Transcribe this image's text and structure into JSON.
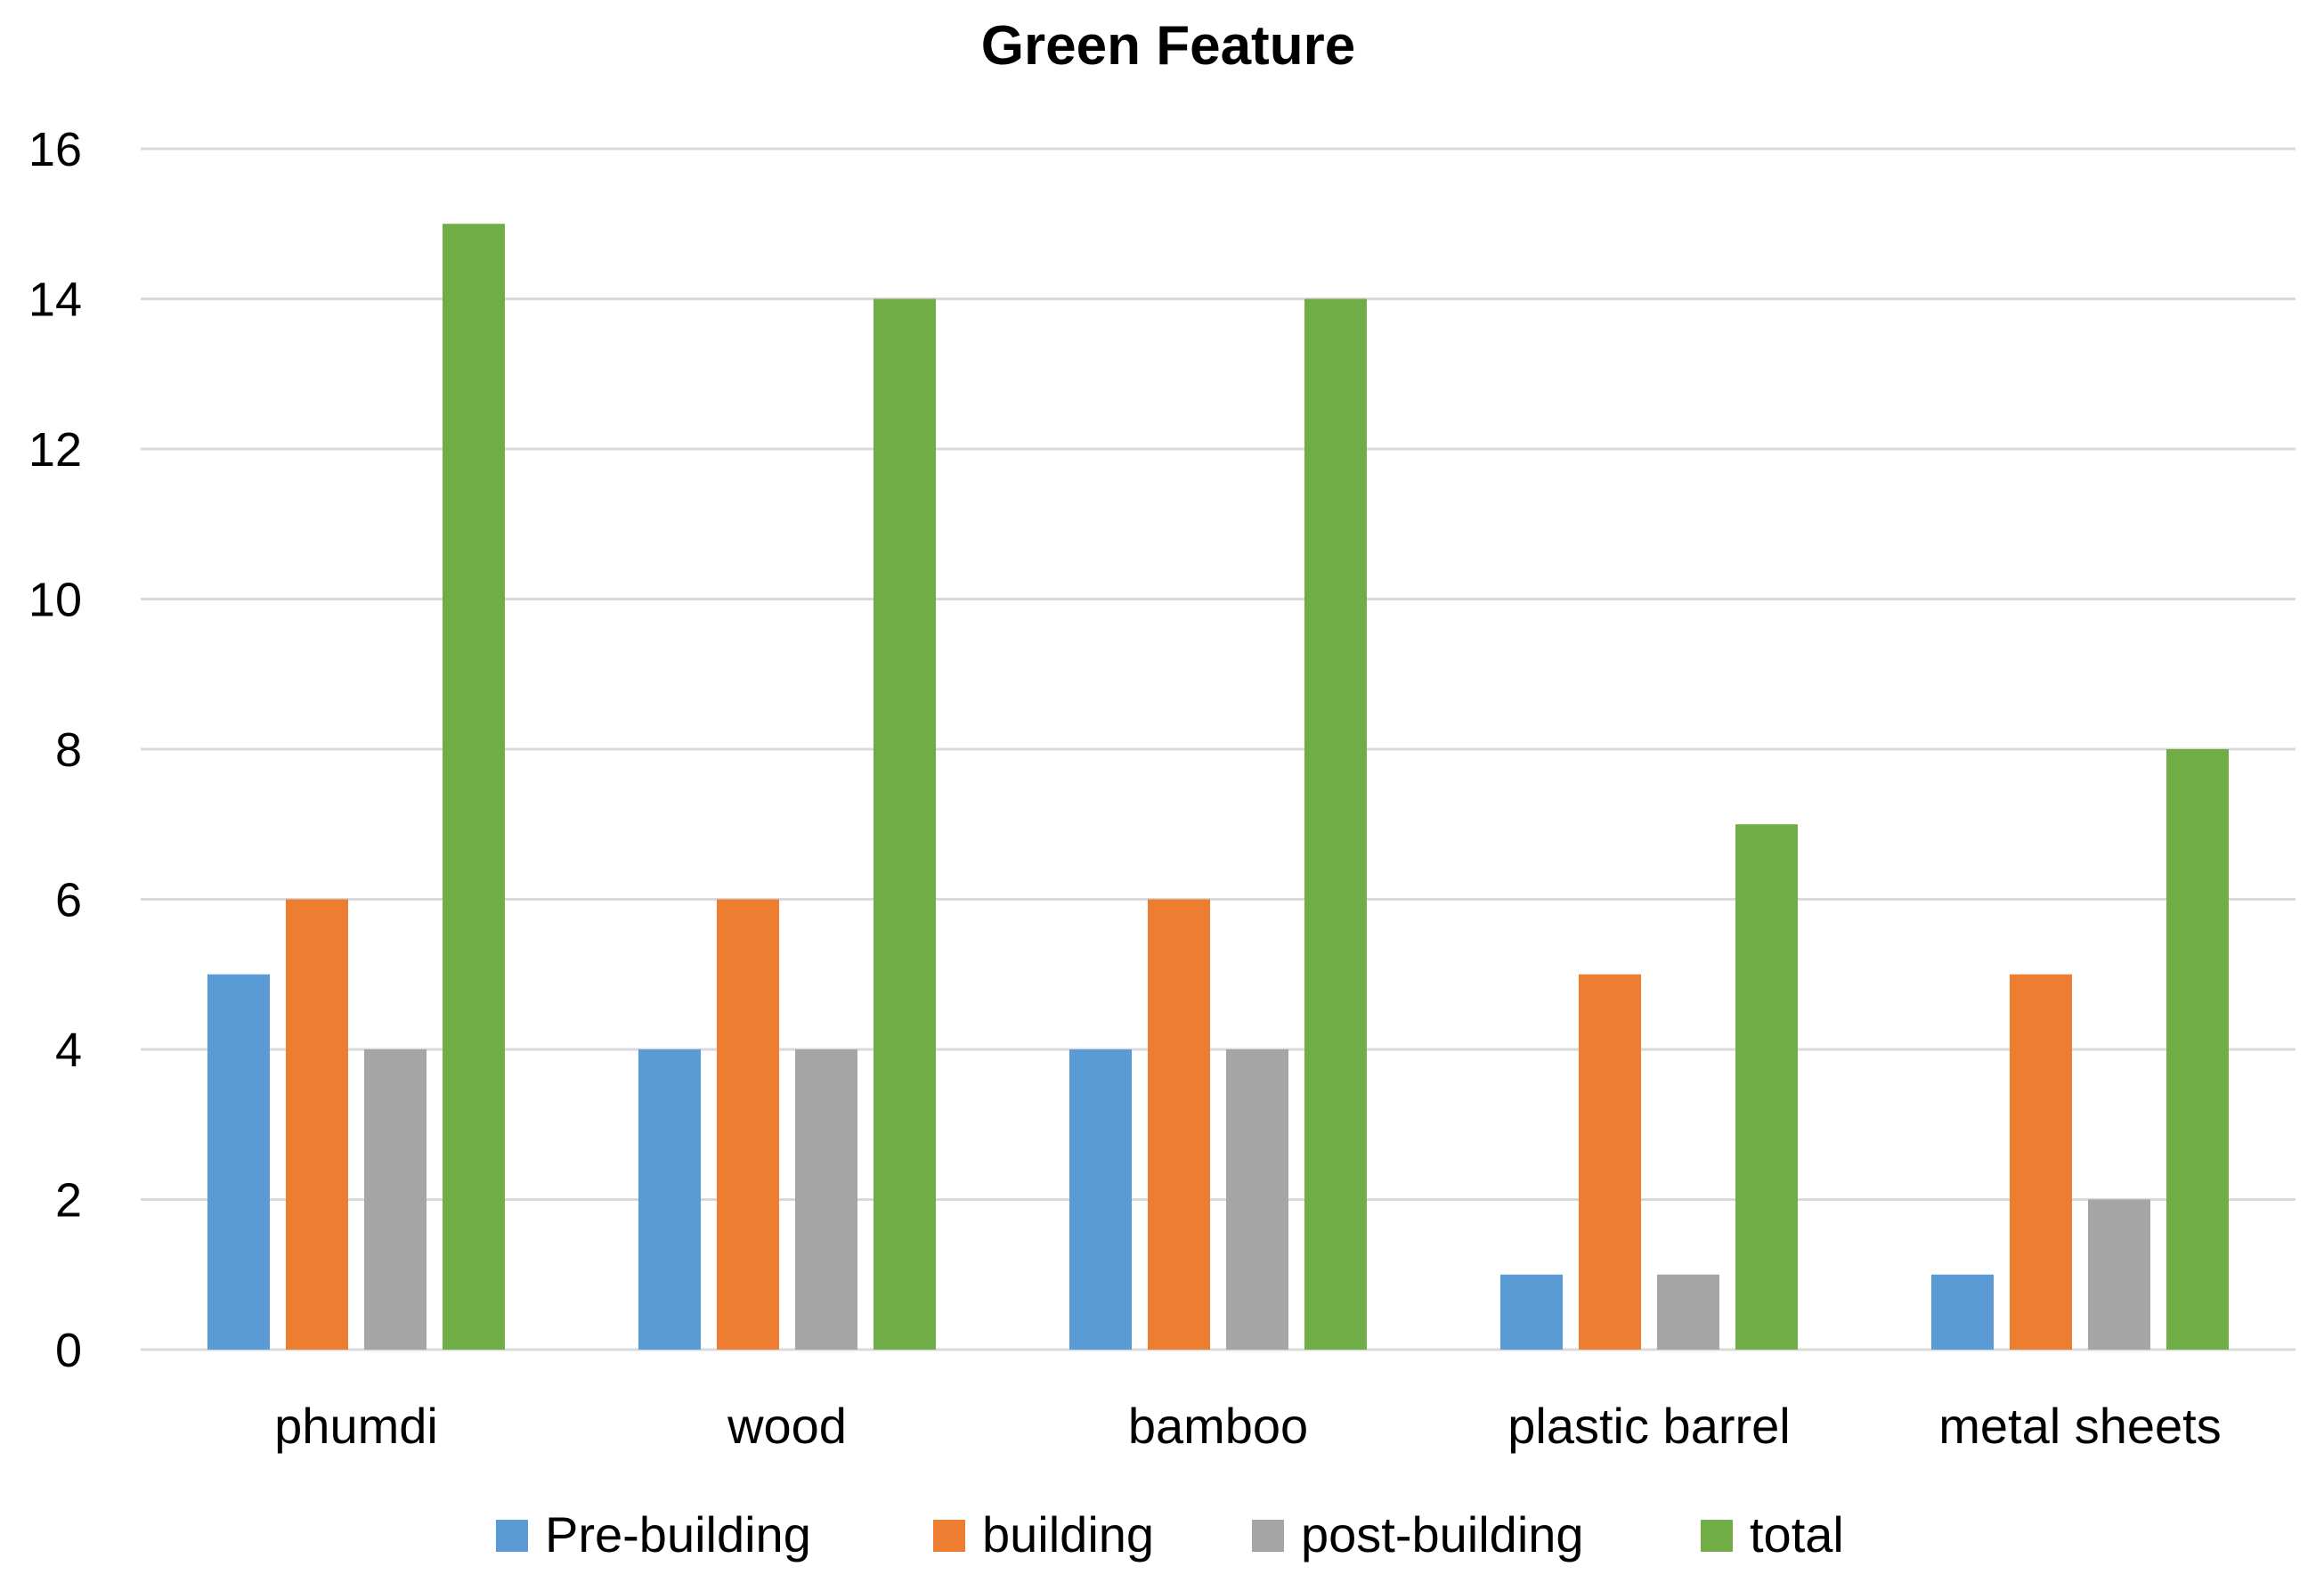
{
  "chart_data": {
    "type": "bar",
    "title": "Green Feature",
    "xlabel": "",
    "ylabel": "",
    "ylim": [
      0,
      16
    ],
    "yticks": [
      "0",
      "2",
      "4",
      "6",
      "8",
      "10",
      "12",
      "14",
      "16"
    ],
    "grid": true,
    "legend_position": "bottom",
    "categories": [
      "phumdi",
      "wood",
      "bamboo",
      "plastic barrel",
      "metal sheets"
    ],
    "series": [
      {
        "name": "Pre-building",
        "color": "#5b9bd5",
        "values": [
          5,
          4,
          4,
          1,
          1
        ]
      },
      {
        "name": "building",
        "color": "#ed7d31",
        "values": [
          6,
          6,
          6,
          5,
          5
        ]
      },
      {
        "name": "post-building",
        "color": "#a5a5a5",
        "values": [
          4,
          4,
          4,
          1,
          2
        ]
      },
      {
        "name": "total",
        "color": "#70ad47",
        "values": [
          15,
          14,
          14,
          7,
          8
        ]
      }
    ]
  }
}
